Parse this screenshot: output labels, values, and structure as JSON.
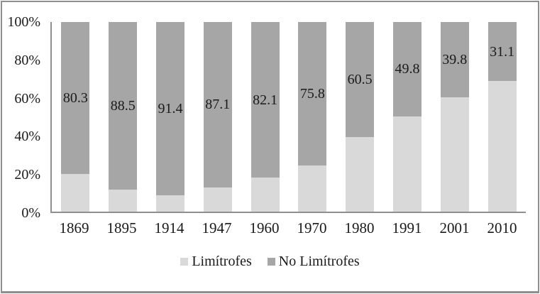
{
  "chart_data": {
    "type": "bar",
    "variant": "stacked-100",
    "categories": [
      "1869",
      "1895",
      "1914",
      "1947",
      "1960",
      "1970",
      "1980",
      "1991",
      "2001",
      "2010"
    ],
    "series": [
      {
        "name": "Limítrofes",
        "color": "#d9d9d9",
        "values": [
          19.7,
          11.5,
          8.6,
          12.9,
          17.9,
          24.2,
          39.5,
          50.2,
          60.2,
          68.9
        ],
        "data_labels": null
      },
      {
        "name": "No Limítrofes",
        "color": "#a6a6a6",
        "values": [
          80.3,
          88.5,
          91.4,
          87.1,
          82.1,
          75.8,
          60.5,
          49.8,
          39.8,
          31.1
        ],
        "data_labels": [
          "80.3",
          "88.5",
          "91.4",
          "87.1",
          "82.1",
          "75.8",
          "60.5",
          "49.8",
          "39.8",
          "31.1"
        ]
      }
    ],
    "y_ticks": [
      "100%",
      "80%",
      "60%",
      "40%",
      "20%",
      "0%"
    ],
    "ylim": [
      0,
      100
    ],
    "xlabel": "",
    "ylabel": "",
    "title": "",
    "grid": false,
    "legend": [
      "Limítrofes",
      "No Limítrofes"
    ],
    "legend_position": "bottom",
    "axis_color": "#8f8f8f",
    "label_text_color": "#1a1a1a"
  }
}
